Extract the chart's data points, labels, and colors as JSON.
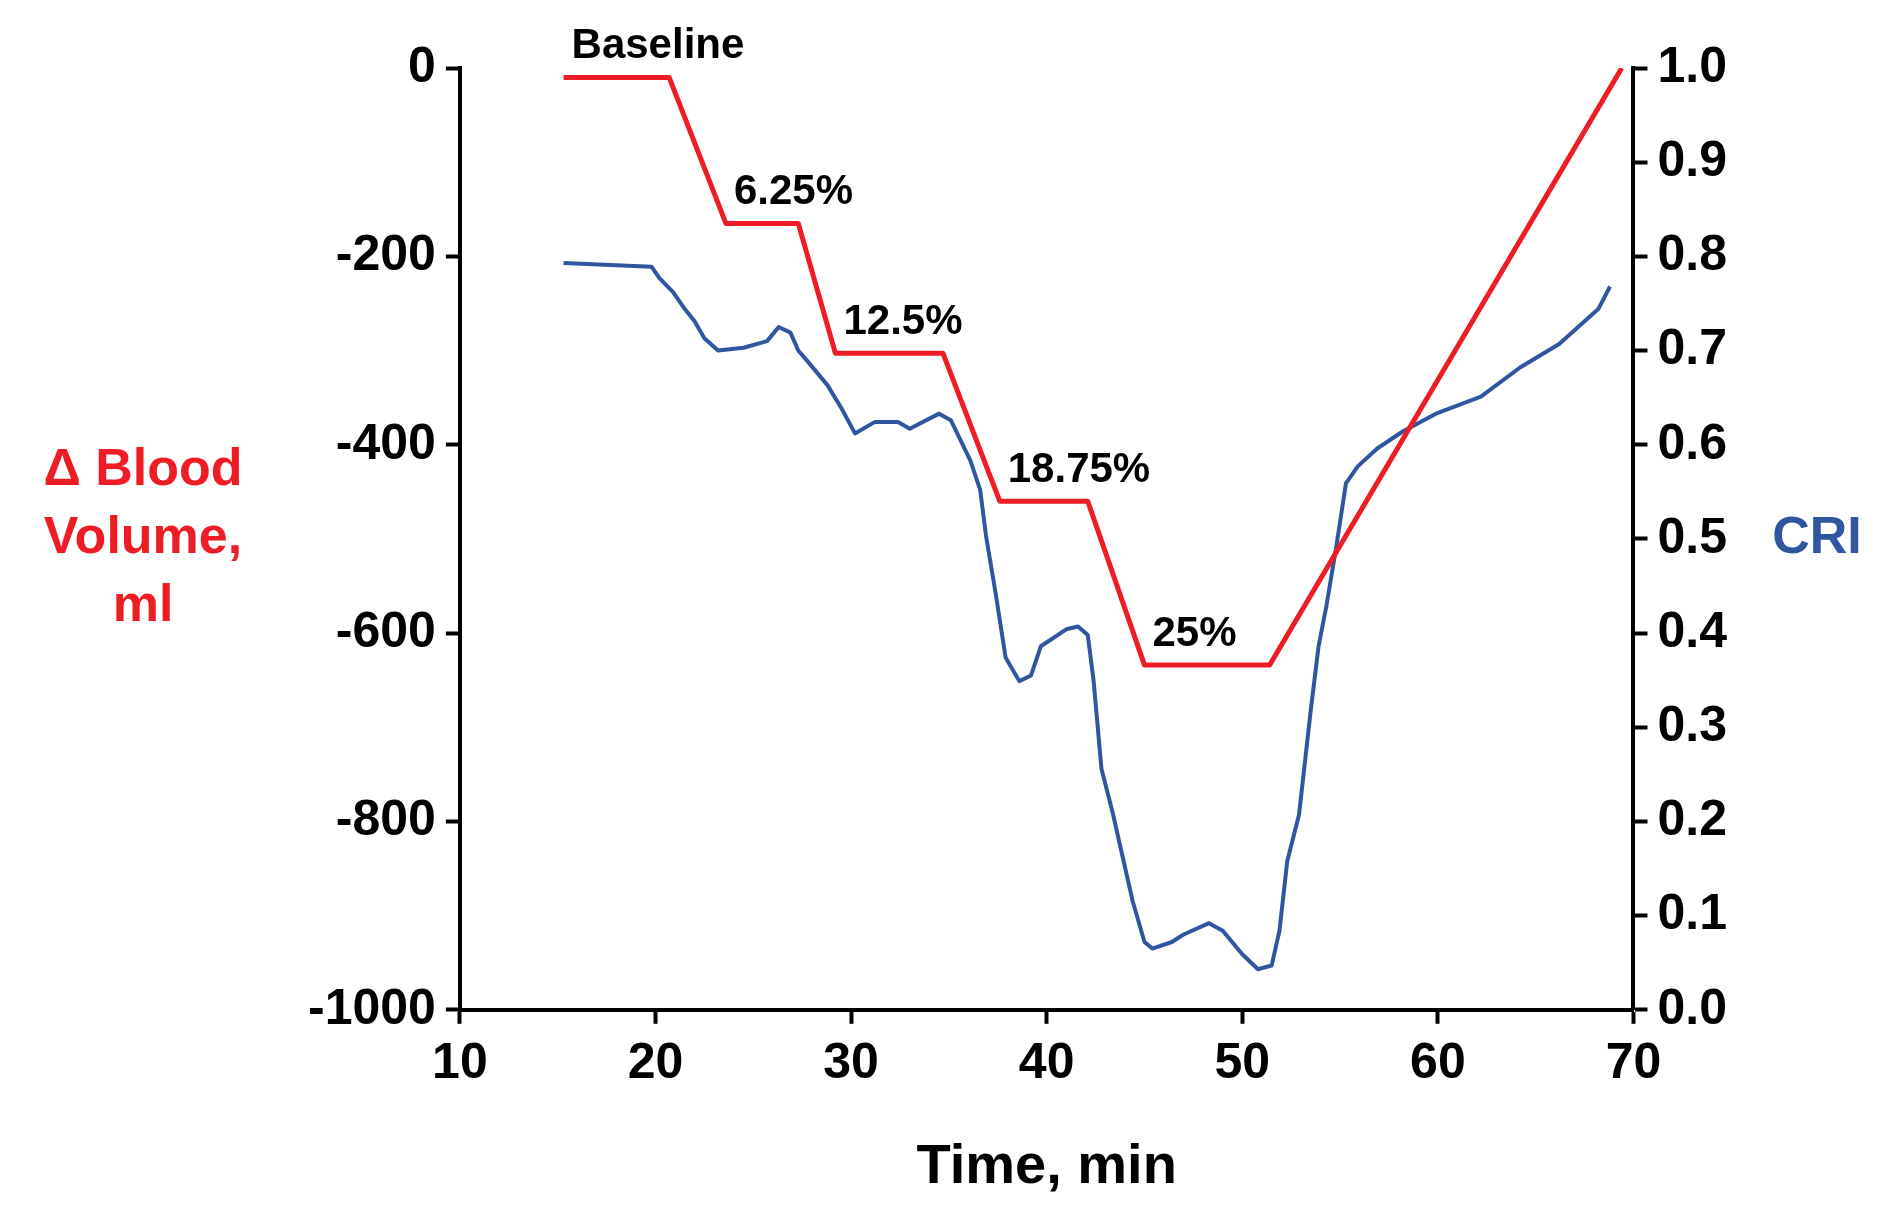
{
  "chart_data": {
    "type": "line",
    "xlabel": "Time, min",
    "ylabel": "Δ Blood Volume, ml",
    "y2label": "CRI",
    "xlim": [
      10,
      70
    ],
    "xticks": [
      10,
      20,
      30,
      40,
      50,
      60,
      70
    ],
    "ylim": [
      -1000,
      0
    ],
    "yticks": [
      -1000,
      -800,
      -600,
      -400,
      -200,
      0
    ],
    "y2lim": [
      0,
      1
    ],
    "y2ticks": [
      {
        "value": 0,
        "label": "0.0"
      },
      0.1,
      0.2,
      0.3,
      0.4,
      0.5,
      0.6,
      0.7,
      0.8,
      0.9,
      {
        "value": 1,
        "label": "1.0"
      }
    ],
    "grid": false,
    "legend": false,
    "marker": "none",
    "line_style": "solid",
    "series": [
      {
        "color": "#ee1c25",
        "x": [
          15.3,
          20.7,
          23.6,
          27.3,
          29.2,
          34.7,
          37.6,
          42.1,
          45.0,
          51.4,
          69.4
        ],
        "values": [
          -10,
          -10,
          -165,
          -165,
          -303,
          -303,
          -460,
          -460,
          -634,
          -634,
          0
        ]
      },
      {
        "color": "#3056a0",
        "axis": "y2",
        "x": [
          15.3,
          19.8,
          20.2,
          20.9,
          21.5,
          22.0,
          22.5,
          23.2,
          24.5,
          25.7,
          26.3,
          26.9,
          27.3,
          27.8,
          28.8,
          29.5,
          30.2,
          31.2,
          32.4,
          33.0,
          34.5,
          35.1,
          36.1,
          36.6,
          36.9,
          37.4,
          37.9,
          38.6,
          39.2,
          39.7,
          41.0,
          41.6,
          42.1,
          42.4,
          42.8,
          43.4,
          43.8,
          44.4,
          45.0,
          45.4,
          46.4,
          47.0,
          48.3,
          49.0,
          50.0,
          50.8,
          51.5,
          51.9,
          52.3,
          52.9,
          53.5,
          53.9,
          54.3,
          54.8,
          55.3,
          55.9,
          56.9,
          58.2,
          59.9,
          62.2,
          64.2,
          66.2,
          68.2,
          68.8
        ],
        "values": [
          0.793,
          0.789,
          0.777,
          0.762,
          0.744,
          0.731,
          0.713,
          0.7,
          0.703,
          0.71,
          0.725,
          0.719,
          0.7,
          0.688,
          0.663,
          0.639,
          0.612,
          0.624,
          0.624,
          0.617,
          0.633,
          0.626,
          0.583,
          0.552,
          0.503,
          0.441,
          0.374,
          0.349,
          0.355,
          0.386,
          0.404,
          0.407,
          0.398,
          0.349,
          0.256,
          0.207,
          0.17,
          0.115,
          0.072,
          0.065,
          0.072,
          0.08,
          0.092,
          0.084,
          0.059,
          0.043,
          0.047,
          0.084,
          0.158,
          0.207,
          0.318,
          0.386,
          0.429,
          0.491,
          0.559,
          0.577,
          0.596,
          0.614,
          0.633,
          0.651,
          0.682,
          0.707,
          0.744,
          0.768
        ]
      }
    ],
    "annotations": [
      {
        "text": "Baseline",
        "x": 15.3,
        "y": -10
      },
      {
        "text": "6.25%",
        "x": 23.6,
        "y": -165
      },
      {
        "text": "12.5%",
        "x": 29.2,
        "y": -303
      },
      {
        "text": "18.75%",
        "x": 37.6,
        "y": -460
      },
      {
        "text": "25%",
        "x": 45.0,
        "y": -634
      }
    ]
  }
}
